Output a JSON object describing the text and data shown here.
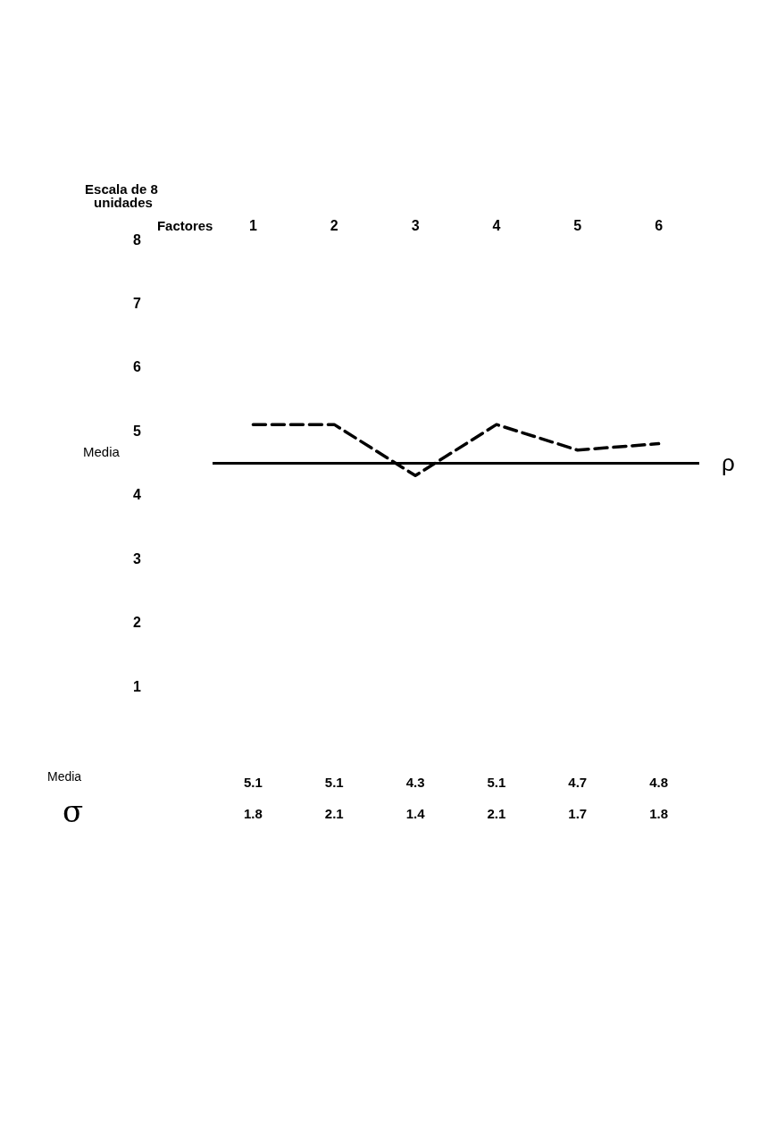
{
  "chart_data": {
    "type": "line",
    "xlabel": "Factores",
    "ylabel": "Escala de 8 unidades",
    "categories": [
      "1",
      "2",
      "3",
      "4",
      "5",
      "6"
    ],
    "series": [
      {
        "color": "#000000",
        "values": [
          5.1,
          5.1,
          4.3,
          5.1,
          4.7,
          4.8
        ]
      }
    ],
    "ylim": [
      1,
      8
    ],
    "yticks": [
      1,
      2,
      3,
      4,
      5,
      6,
      7,
      8
    ],
    "ref_lines": [
      {
        "axis": "y",
        "value": 4.5,
        "label": "Media",
        "color": "#000000",
        "line_style": "solid"
      }
    ],
    "annotations": [
      "ρ",
      "Media",
      "σ",
      "1.8",
      "2.1",
      "1.4",
      "2.1",
      "1.7",
      "1.8"
    ],
    "data_labels": true,
    "grid": false,
    "marker": "none",
    "line_style": "dashed"
  }
}
